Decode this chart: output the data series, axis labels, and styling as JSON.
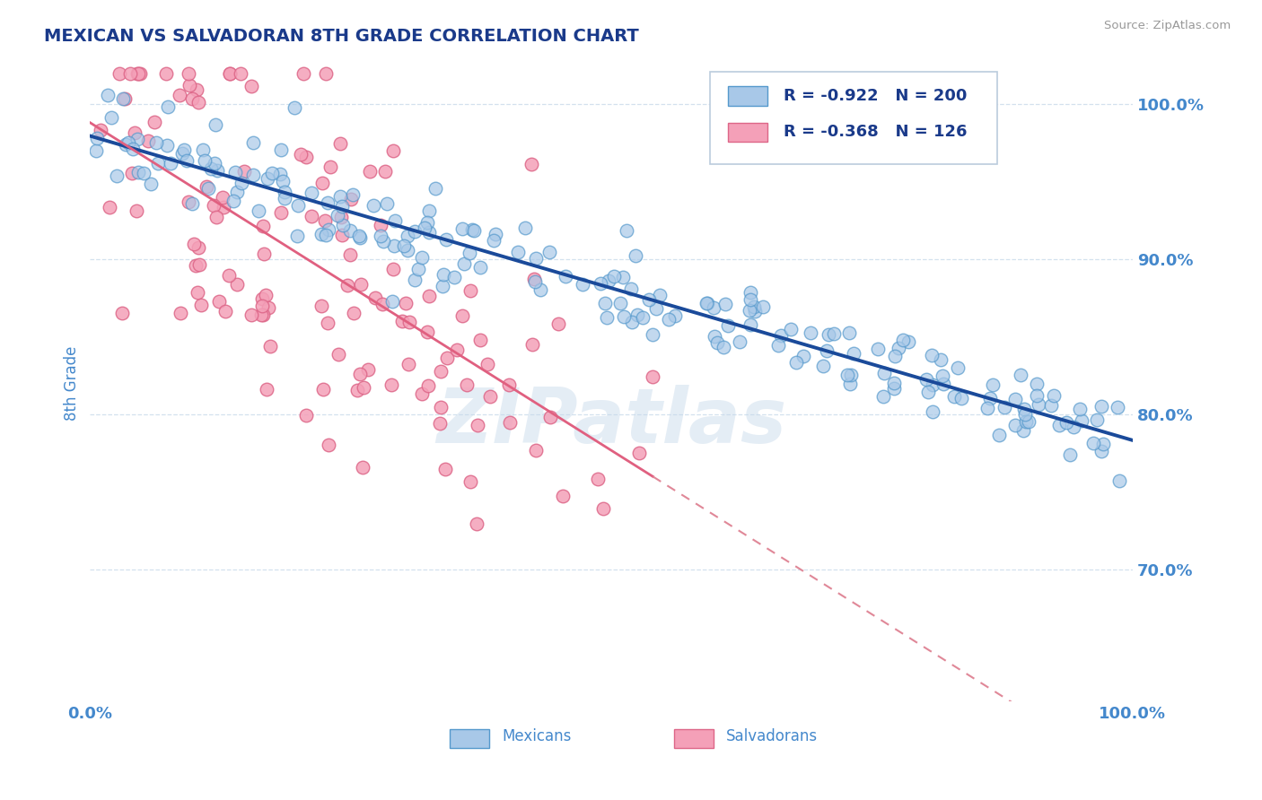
{
  "title": "MEXICAN VS SALVADORAN 8TH GRADE CORRELATION CHART",
  "source": "Source: ZipAtlas.com",
  "ylabel": "8th Grade",
  "xlim": [
    0.0,
    1.0
  ],
  "ylim": [
    0.615,
    1.025
  ],
  "r_mexican": -0.922,
  "n_mexican": 200,
  "r_salvadoran": -0.368,
  "n_salvadoran": 126,
  "mexican_color": "#a8c8e8",
  "mexican_edge": "#5599cc",
  "salvadoran_color": "#f4a0b8",
  "salvadoran_edge": "#dd6688",
  "mexican_line_color": "#1a4a9a",
  "salvadoran_line_solid": "#e06080",
  "salvadoran_line_dashed": "#e08898",
  "watermark": "ZIPatlas",
  "title_color": "#1a3a8a",
  "axis_label_color": "#4488cc",
  "tick_color": "#4488cc",
  "grid_color": "#c8daea",
  "background_color": "#ffffff",
  "seed": 42
}
